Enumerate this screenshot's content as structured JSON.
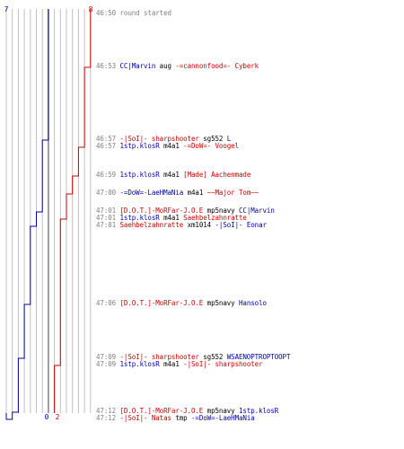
{
  "colors": {
    "team_blue": "#0000aa",
    "team_red": "#cc0000",
    "time": "#808080",
    "weapon": "#000000",
    "grid": "#c0c0c0",
    "grid_mid": "#808080"
  },
  "score_labels": {
    "blue_start": "7",
    "red_start": "8",
    "blue_end": "0",
    "red_end": "2"
  },
  "events": [
    {
      "time": "46:50",
      "type": "message",
      "text": "round started"
    },
    {
      "time": "46:53",
      "type": "kill",
      "killer": "CC|Marvin",
      "killer_team": "blue",
      "weapon": "aug",
      "victim": "-=cannonfood=- Cyberk",
      "victim_team": "red"
    },
    {
      "time": "46:57",
      "type": "kill",
      "killer": "-|SoI|- sharpshooter",
      "killer_team": "red",
      "weapon": "sg552",
      "victim": "L",
      "victim_team": "blue"
    },
    {
      "time": "46:57",
      "type": "kill",
      "killer": "1stp.klosR",
      "killer_team": "blue",
      "weapon": "m4a1",
      "victim": "-=DoW=- Voogel",
      "victim_team": "red"
    },
    {
      "time": "46:59",
      "type": "kill",
      "killer": "1stp.klosR",
      "killer_team": "blue",
      "weapon": "m4a1",
      "victim": "[Made] Aachenmade",
      "victim_team": "red"
    },
    {
      "time": "47:00",
      "type": "kill",
      "killer": "-=DoW=-LaeHMaNia",
      "killer_team": "blue",
      "weapon": "m4a1",
      "victim": "~~Major Tom~~",
      "victim_team": "red"
    },
    {
      "time": "47:01",
      "type": "kill",
      "killer": "[D.O.T.]-MoRFar-J.O.E",
      "killer_team": "red",
      "weapon": "mp5navy",
      "victim": "CC|Marvin",
      "victim_team": "blue"
    },
    {
      "time": "47:01",
      "type": "kill",
      "killer": "1stp.klosR",
      "killer_team": "blue",
      "weapon": "m4a1",
      "victim": "Saehbelzahnratte",
      "victim_team": "red"
    },
    {
      "time": "47:01",
      "type": "kill",
      "killer": "Saehbelzahnratte",
      "killer_team": "red",
      "weapon": "xm1014",
      "victim": "-|SoI|- Eonar",
      "victim_team": "blue"
    },
    {
      "time": "47:06",
      "type": "kill",
      "killer": "[D.O.T.]-MoRFar-J.O.E",
      "killer_team": "red",
      "weapon": "mp5navy",
      "victim": "Hansolo",
      "victim_team": "blue"
    },
    {
      "time": "47:09",
      "type": "kill",
      "killer": "-|SoI|- sharpshooter",
      "killer_team": "red",
      "weapon": "sg552",
      "victim": "WSAENOPTROPTOOPT",
      "victim_team": "blue"
    },
    {
      "time": "47:09",
      "type": "kill",
      "killer": "1stp.klosR",
      "killer_team": "blue",
      "weapon": "m4a1",
      "victim": "-|SoI|- sharpshooter",
      "victim_team": "red"
    },
    {
      "time": "47:12",
      "type": "kill",
      "killer": "[D.O.T.]-MoRFar-J.O.E",
      "killer_team": "red",
      "weapon": "mp5navy",
      "victim": "1stp.klosR",
      "victim_team": "blue"
    },
    {
      "time": "47:12",
      "type": "kill",
      "killer": "-|SoI|- Natas",
      "killer_team": "red",
      "weapon": "tmp",
      "victim": "-=DoW=-LaeHMaNia",
      "victim_team": "blue"
    }
  ]
}
